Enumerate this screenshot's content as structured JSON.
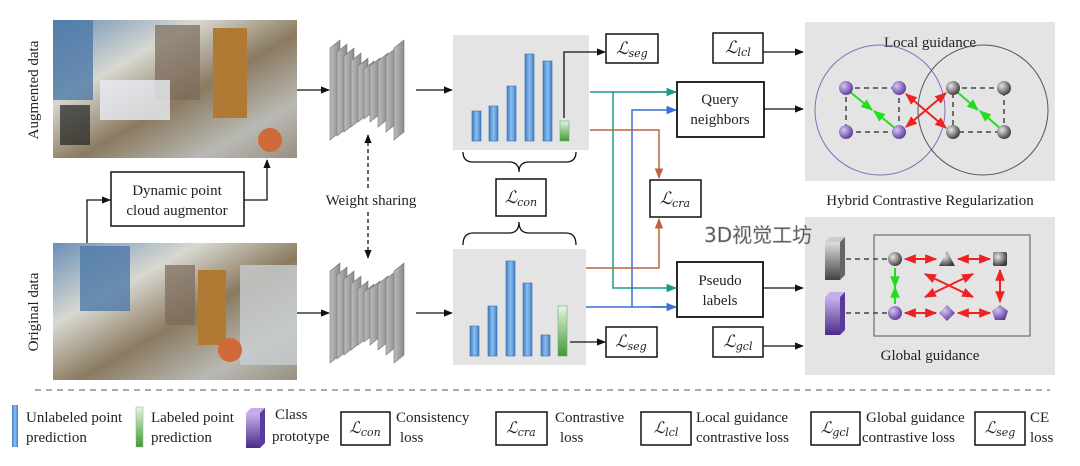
{
  "inputs": {
    "augmented_label": "Augmented data",
    "original_label": "Original data",
    "augmentor_line1": "Dynamic point",
    "augmentor_line2": "cloud augmentor",
    "weight_sharing": "Weight sharing"
  },
  "predictions": {
    "top_bars_unlabeled": [
      3,
      3.5,
      5.5,
      8.7,
      8,
      2
    ],
    "bottom_bars_unlabeled": [
      3,
      5,
      9.5,
      7.3,
      2.1,
      5
    ]
  },
  "losses": {
    "symbol": "ℒ",
    "seg": "seg",
    "con": "con",
    "cra": "cra",
    "lcl": "lcl",
    "gcl": "gcl"
  },
  "modules": {
    "query_line1": "Query",
    "query_line2": "neighbors",
    "pseudo_line1": "Pseudo",
    "pseudo_line2": "labels"
  },
  "hcr": {
    "local_title": "Local guidance",
    "title": "Hybrid Contrastive Regularization",
    "global_title": "Global guidance"
  },
  "legend": {
    "unlabeled_1": "Unlabeled point",
    "unlabeled_2": "prediction",
    "labeled_1": "Labeled point",
    "labeled_2": "prediction",
    "proto_1": "Class",
    "proto_2": "prototype",
    "con_1": "Consistency",
    "con_2": "loss",
    "cra_1": "Contrastive",
    "cra_2": "loss",
    "lcl_1": "Local guidance",
    "lcl_2": "contrastive loss",
    "gcl_1": "Global guidance",
    "gcl_2": "contrastive loss",
    "seg_1": "CE",
    "seg_2": "loss"
  },
  "watermark": "3D视觉工坊",
  "colors": {
    "teal": "#1a9a8a",
    "blue": "#3b6fd6",
    "brown": "#c0603f",
    "red": "#ee2222",
    "green": "#22dd22",
    "purple": "#7a55b8",
    "panel": "#e4e4e4"
  }
}
